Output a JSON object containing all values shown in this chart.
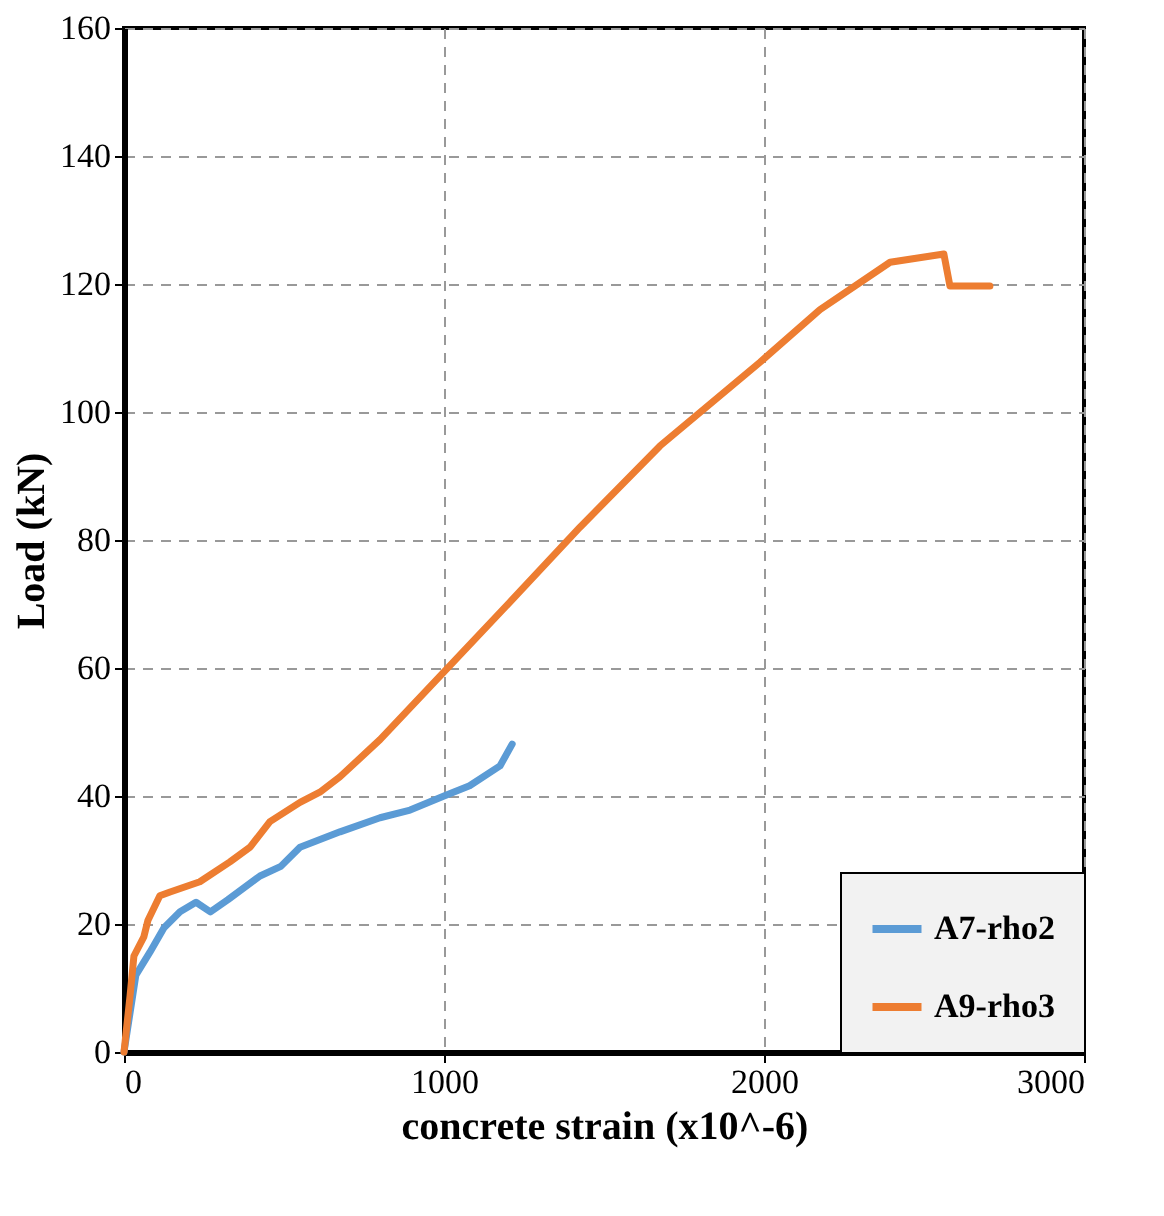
{
  "chart_data": {
    "type": "line",
    "xlabel": "concrete strain (x10^-6)",
    "ylabel": "Load (kN)",
    "xlim": [
      0,
      3000
    ],
    "xticks": [
      0,
      1000,
      2000,
      3000
    ],
    "ylim": [
      0,
      160
    ],
    "yticks": [
      0,
      20,
      40,
      60,
      80,
      100,
      120,
      140,
      160
    ],
    "grid": true,
    "legend": "bottom right",
    "line_style": "solid",
    "marker": "none",
    "series": [
      {
        "name": "A7-rho2",
        "color": "#5b9bd5",
        "x": [
          0,
          37,
          81,
          125,
          175,
          225,
          270,
          325,
          425,
          490,
          550,
          675,
          800,
          894,
          1000,
          1080,
          1175,
          1213
        ],
        "values": [
          0,
          12,
          15.6,
          19.4,
          21.9,
          23.4,
          21.9,
          23.8,
          27.5,
          29,
          32,
          34.4,
          36.6,
          37.8,
          40,
          41.6,
          44.7,
          48.1
        ]
      },
      {
        "name": "A9-rho3",
        "color": "#ed7d31",
        "x": [
          0,
          19,
          31,
          62,
          75,
          112,
          144,
          237,
          331,
          394,
          456,
          550,
          612,
          675,
          800,
          1000,
          1206,
          1425,
          1675,
          1988,
          2175,
          2394,
          2562,
          2581,
          2706
        ],
        "values": [
          0,
          8.8,
          15,
          18,
          20.6,
          24.4,
          25,
          26.6,
          29.7,
          32,
          36,
          39,
          40.6,
          43,
          48.8,
          59.4,
          70.3,
          82,
          94.7,
          107.8,
          116,
          123.4,
          124.7,
          119.7,
          119.7
        ]
      }
    ]
  }
}
